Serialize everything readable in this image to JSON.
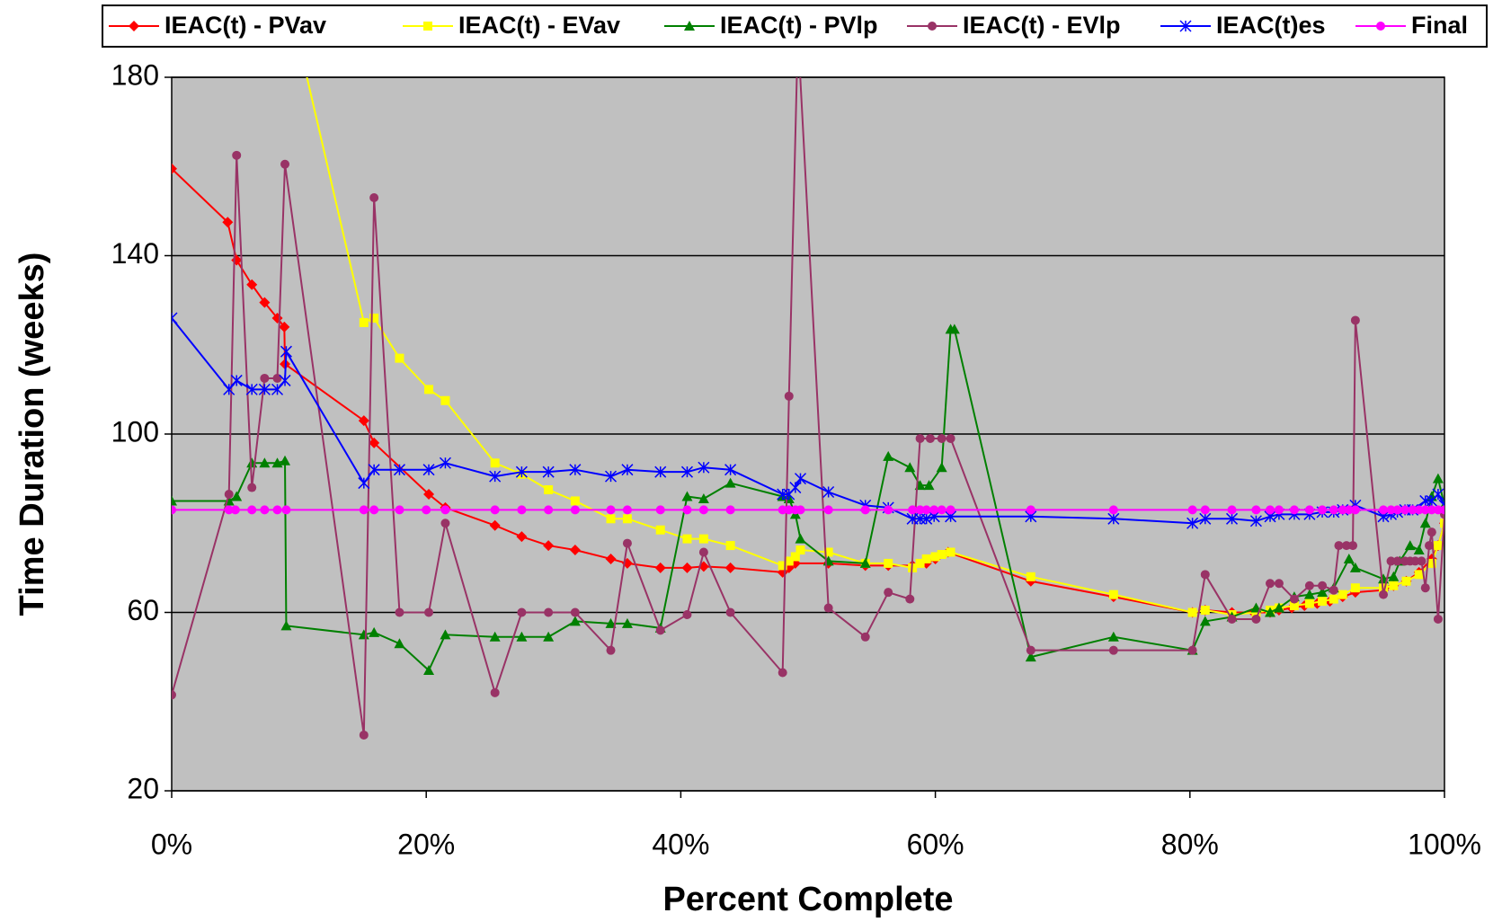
{
  "chart_data": {
    "type": "line",
    "xlabel": "Percent Complete",
    "ylabel": "Time Duration (weeks)",
    "xlim": [
      0,
      100
    ],
    "ylim": [
      20,
      180
    ],
    "xticks": [
      {
        "value": 0,
        "label": "0%"
      },
      {
        "value": 20,
        "label": "20%"
      },
      {
        "value": 40,
        "label": "40%"
      },
      {
        "value": 60,
        "label": "60%"
      },
      {
        "value": 80,
        "label": "80%"
      },
      {
        "value": 100,
        "label": "100%"
      }
    ],
    "yticks": [
      20,
      60,
      100,
      140,
      180
    ],
    "grid": true,
    "legend": "top",
    "series": [
      {
        "name": "IEAC(t) - PVav",
        "color": "#ff0000",
        "marker": "diamond",
        "x": [
          0,
          4.4,
          5.1,
          6.3,
          7.3,
          8.3,
          8.85,
          8.9,
          15.1,
          15.9,
          20.2,
          21.5,
          25.4,
          27.5,
          29.6,
          31.7,
          34.5,
          35.8,
          38.4,
          40.5,
          41.8,
          43.9,
          48,
          48.5,
          49,
          51.6,
          54.5,
          56.3,
          58.2,
          59.3,
          60,
          61,
          67.5,
          74,
          80.2,
          81.2,
          83.3,
          85,
          86.3,
          87,
          88,
          89,
          90,
          91,
          92,
          93,
          95.2,
          96,
          97,
          98,
          99,
          99.5,
          100
        ],
        "values": [
          159.5,
          147.5,
          139,
          133.5,
          129.5,
          126,
          124,
          115.7,
          103,
          98,
          86.5,
          83.5,
          79.5,
          77,
          75,
          74,
          72,
          71,
          70,
          70,
          70.3,
          70,
          69,
          70,
          71,
          71,
          70.5,
          70.5,
          70.5,
          71,
          72,
          73.5,
          67,
          63.5,
          60,
          60.5,
          60,
          60,
          60,
          60.5,
          61,
          61.5,
          62,
          62.5,
          63.5,
          64.5,
          65,
          66,
          67,
          69,
          72,
          75,
          80
        ]
      },
      {
        "name": "IEAC(t) - EVav",
        "color": "#ffff00",
        "marker": "square",
        "x": [
          9,
          15.1,
          15.9,
          17.9,
          20.2,
          21.5,
          25.4,
          27.5,
          29.6,
          31.7,
          34.5,
          35.8,
          38.4,
          40.5,
          41.8,
          43.9,
          48,
          48.5,
          49,
          49.4,
          51.6,
          54.5,
          56.3,
          58.2,
          58.8,
          59.3,
          60,
          60.5,
          61.2,
          67.5,
          74,
          80.2,
          81.2,
          83.3,
          85.2,
          86.3,
          87,
          88.2,
          89.4,
          90.4,
          91.3,
          92,
          93,
          95.2,
          96,
          97,
          98,
          99,
          99.5,
          100
        ],
        "values": [
          200,
          125,
          126,
          117,
          110,
          107.5,
          93.5,
          91,
          87.5,
          85,
          81,
          81,
          78.5,
          76.5,
          76.5,
          75,
          70.5,
          71.5,
          72.5,
          74,
          73.5,
          71,
          71,
          70,
          71,
          72,
          72.5,
          73,
          73.5,
          68,
          64,
          60,
          60.5,
          59.5,
          60,
          60.5,
          61,
          61.5,
          62,
          62.5,
          63,
          64,
          65.5,
          65.5,
          66,
          67,
          68.5,
          71,
          75,
          80
        ]
      },
      {
        "name": "IEAC(t) - PVlp",
        "color": "#008000",
        "marker": "triangle",
        "x": [
          0,
          4.5,
          5.1,
          6.3,
          7.3,
          8.3,
          8.9,
          9,
          15.1,
          15.9,
          17.9,
          20.2,
          21.5,
          25.4,
          27.5,
          29.6,
          31.7,
          34.5,
          35.8,
          38.4,
          40.5,
          41.8,
          43.9,
          48,
          48.5,
          49,
          49.4,
          51.6,
          54.5,
          56.3,
          58,
          58.8,
          59.5,
          60.5,
          61.2,
          61.5,
          67.5,
          74,
          80.2,
          81.2,
          83.3,
          85.2,
          86.3,
          87,
          88.2,
          89.4,
          90.4,
          91.3,
          92.5,
          93,
          95.2,
          96,
          96.5,
          97.3,
          98,
          98.5,
          99,
          99.5,
          100
        ],
        "values": [
          85,
          85,
          86,
          93.5,
          93.5,
          93.5,
          94,
          57,
          55,
          55.5,
          53,
          47,
          55,
          54.5,
          54.5,
          54.5,
          58,
          57.5,
          57.5,
          56.5,
          86,
          85.5,
          89,
          86,
          85.5,
          82,
          76.5,
          71.5,
          71,
          95,
          92.5,
          88.5,
          88.5,
          92.5,
          123.5,
          123.5,
          50,
          54.5,
          51.5,
          58,
          59,
          61,
          60,
          61,
          63.5,
          64,
          64.5,
          65.5,
          72,
          70,
          67.5,
          68,
          71.5,
          75,
          74,
          80,
          86,
          90,
          84
        ]
      },
      {
        "name": "IEAC(t) - EVlp",
        "color": "#993366",
        "marker": "circle",
        "x": [
          0,
          4.5,
          5.1,
          6.3,
          7.3,
          8.3,
          8.9,
          15.1,
          15.9,
          17.9,
          20.2,
          21.5,
          25.4,
          27.5,
          29.6,
          31.7,
          34.5,
          35.8,
          38.4,
          40.5,
          41.8,
          43.9,
          48,
          48.5,
          49.2,
          51.6,
          54.5,
          56.3,
          58,
          58.8,
          59.6,
          60.5,
          61.2,
          67.5,
          74,
          80.2,
          81.2,
          83.3,
          85.2,
          86.3,
          87,
          88.2,
          89.4,
          90.4,
          91.3,
          91.7,
          92.3,
          92.8,
          93,
          95.2,
          95.8,
          96.3,
          96.9,
          97.3,
          97.7,
          98.2,
          98.5,
          98.8,
          99,
          99.5,
          100
        ],
        "values": [
          41.5,
          86.5,
          162.5,
          88,
          112.5,
          112.5,
          160.5,
          32.5,
          153,
          60,
          60,
          80,
          42,
          60,
          60,
          60,
          51.5,
          75.5,
          56,
          59.5,
          73.5,
          60,
          46.5,
          108.5,
          190,
          61,
          54.5,
          64.5,
          63,
          99,
          99,
          99,
          99,
          51.5,
          51.5,
          51.5,
          68.5,
          58.5,
          58.5,
          66.5,
          66.5,
          63,
          66,
          66,
          65,
          75,
          75,
          75,
          125.5,
          64,
          71.5,
          71.5,
          71.5,
          71.5,
          71.5,
          71.5,
          65.5,
          75,
          78,
          58.5,
          82
        ]
      },
      {
        "name": "IEAC(t)es",
        "color": "#0000ff",
        "marker": "star",
        "x": [
          0,
          4.5,
          5.1,
          6.3,
          7.3,
          8.3,
          8.9,
          9,
          15.1,
          15.9,
          17.9,
          20.2,
          21.5,
          25.4,
          27.5,
          29.6,
          31.7,
          34.5,
          35.8,
          38.4,
          40.5,
          41.8,
          43.9,
          48,
          48.5,
          49,
          49.4,
          51.6,
          54.5,
          56.3,
          58.2,
          58.8,
          59.3,
          59.9,
          61.2,
          67.5,
          74,
          80.2,
          81.2,
          83.3,
          85.2,
          86.3,
          87,
          88.2,
          89.4,
          90.4,
          91.3,
          92,
          93,
          95.2,
          95.8,
          96.3,
          96.9,
          97.5,
          98.5,
          99,
          99.5,
          100
        ],
        "values": [
          126,
          110,
          112,
          110,
          110,
          110,
          112,
          118.5,
          89,
          92,
          92,
          92,
          93.5,
          90.5,
          91.5,
          91.5,
          92,
          90.5,
          92,
          91.5,
          91.5,
          92.5,
          92,
          86.5,
          86.5,
          88,
          90,
          87,
          84,
          83.5,
          81,
          81,
          81,
          81.5,
          81.5,
          81.5,
          81,
          80,
          81,
          81,
          80.5,
          81.5,
          82,
          82,
          82,
          82.5,
          82.5,
          83,
          84,
          81.5,
          82,
          82.5,
          83,
          83,
          85,
          85,
          86.5,
          84
        ]
      },
      {
        "name": "Final",
        "color": "#ff00ff",
        "marker": "circle",
        "x": [
          0,
          4.5,
          5,
          6.3,
          7.3,
          8.3,
          9,
          15.1,
          15.9,
          17.9,
          20,
          21.5,
          25.4,
          27.5,
          29.6,
          31.7,
          34.5,
          35.8,
          38.4,
          40.5,
          41.8,
          43.9,
          48,
          48.5,
          49,
          49.4,
          51.6,
          54.5,
          56.3,
          58.2,
          58.8,
          59.3,
          59.9,
          60.5,
          61.2,
          67.5,
          74,
          80.2,
          81.2,
          83.3,
          85.2,
          86.3,
          87,
          88.2,
          89.4,
          90.4,
          91.3,
          92,
          92.5,
          93,
          95.2,
          95.8,
          96.3,
          96.9,
          97.5,
          98,
          98.5,
          99,
          99.5,
          100
        ],
        "values": [
          83,
          83,
          83,
          83,
          83,
          83,
          83,
          83,
          83,
          83,
          83,
          83,
          83,
          83,
          83,
          83,
          83,
          83,
          83,
          83,
          83,
          83,
          83,
          83,
          83,
          83,
          83,
          83,
          83,
          83,
          83,
          83,
          83,
          83,
          83,
          83,
          83,
          83,
          83,
          83,
          83,
          83,
          83,
          83,
          83,
          83,
          83,
          83,
          83,
          83,
          83,
          83,
          83,
          83,
          83,
          83,
          83,
          83,
          83,
          83
        ]
      }
    ]
  }
}
